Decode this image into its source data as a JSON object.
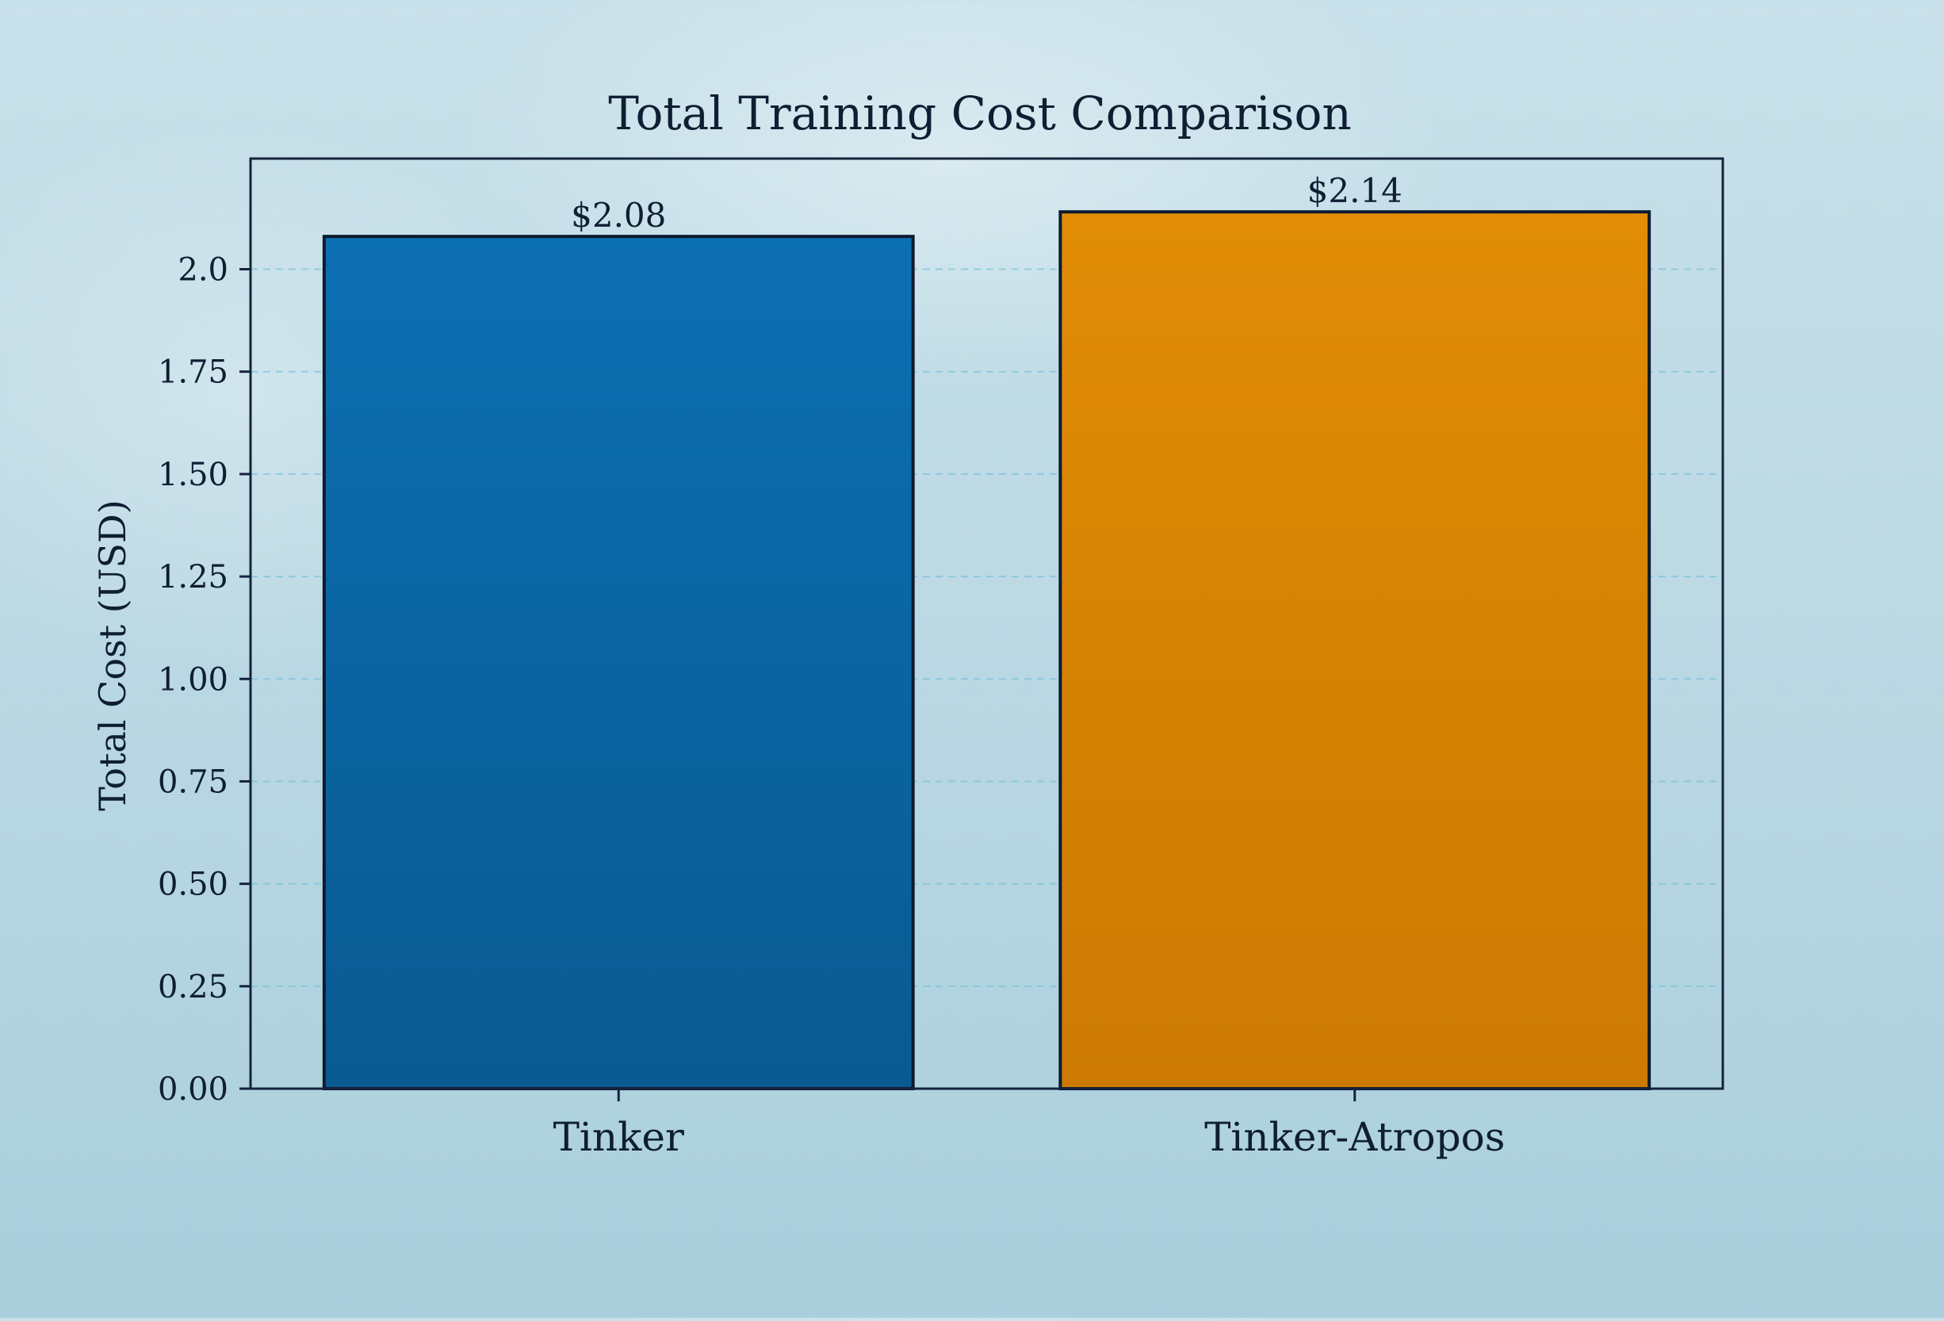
{
  "chart_data": {
    "type": "bar",
    "title": "Total Training Cost Comparison",
    "xlabel": "",
    "ylabel": "Total Cost (USD)",
    "categories": [
      "Tinker",
      "Tinker-Atropos"
    ],
    "values": [
      2.08,
      2.14
    ],
    "value_labels": [
      "$2.08",
      "$2.14"
    ],
    "colors": [
      "#0a64a4",
      "#d98404"
    ],
    "ylim": [
      0,
      2.27
    ],
    "yticks": [
      0,
      0.25,
      0.5,
      0.75,
      1.0,
      1.25,
      1.5,
      1.75,
      2.0
    ],
    "ytick_labels": [
      "0.00",
      "0.25",
      "0.50",
      "0.75",
      "1.00",
      "1.25",
      "1.50",
      "1.75",
      "2.0"
    ],
    "grid": true,
    "legend": "none"
  }
}
